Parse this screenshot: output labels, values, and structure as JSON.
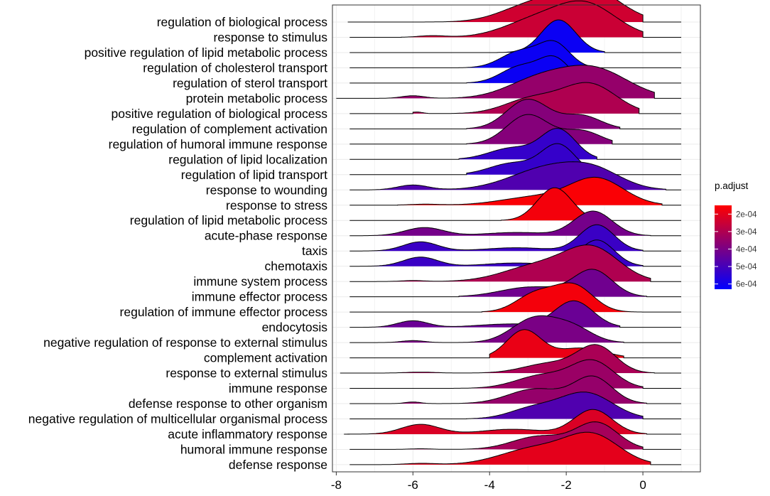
{
  "chart_data": {
    "type": "ridgeline",
    "title": "",
    "xlabel": "",
    "ylabel": "",
    "xlim": [
      -8.1,
      1.5
    ],
    "x_ticks": [
      -8,
      -6,
      -4,
      -2,
      0
    ],
    "x_tick_labels": [
      "-8",
      "-6",
      "-4",
      "-2",
      "0"
    ],
    "grid": true,
    "legend": {
      "title": "p.adjust",
      "position": "right",
      "ticks": [
        0.0002,
        0.0003,
        0.0004,
        0.0005,
        0.0006
      ],
      "tick_labels": [
        "2e-04",
        "3e-04",
        "4e-04",
        "5e-04",
        "6e-04"
      ],
      "range": [
        0.00015,
        0.00063
      ],
      "low_color": "#ff0000",
      "high_color": "#0000ff"
    },
    "colors": {
      "low_p": "#ff0000",
      "high_p": "#0000ff",
      "outline": "#000000",
      "grid": "#ebebeb"
    },
    "series": [
      {
        "name": "regulation of biological process",
        "p_adjust": 0.00024,
        "range": [
          -7.7,
          0.0
        ],
        "peaks": [
          [
            -1.4,
            0.8,
            1.0
          ],
          [
            -2.9,
            0.8,
            0.5
          ]
        ]
      },
      {
        "name": "response to stimulus",
        "p_adjust": 0.00025,
        "range": [
          -6.3,
          0.0
        ],
        "peaks": [
          [
            -1.5,
            0.8,
            1.0
          ],
          [
            -2.9,
            0.8,
            0.45
          ],
          [
            -5.5,
            0.35,
            0.05
          ]
        ]
      },
      {
        "name": "positive regulation of lipid metabolic process",
        "p_adjust": 0.00061,
        "range": [
          -3.8,
          -1.0
        ],
        "peaks": [
          [
            -2.2,
            0.45,
            1.0
          ]
        ]
      },
      {
        "name": "regulation of cholesterol transport",
        "p_adjust": 0.00061,
        "range": [
          -4.8,
          -1.4
        ],
        "peaks": [
          [
            -2.3,
            0.4,
            0.72
          ],
          [
            -3.2,
            0.5,
            0.5
          ]
        ]
      },
      {
        "name": "regulation of sterol transport",
        "p_adjust": 0.00061,
        "range": [
          -4.6,
          -1.4
        ],
        "peaks": [
          [
            -2.3,
            0.4,
            0.72
          ],
          [
            -3.2,
            0.5,
            0.5
          ]
        ]
      },
      {
        "name": "protein metabolic process",
        "p_adjust": 0.00035,
        "range": [
          -8.0,
          0.3
        ],
        "peaks": [
          [
            -1.3,
            0.9,
            0.9
          ],
          [
            -2.8,
            0.8,
            0.5
          ],
          [
            -6.0,
            0.3,
            0.08
          ]
        ]
      },
      {
        "name": "positive regulation of biological process",
        "p_adjust": 0.0003,
        "range": [
          -6.0,
          -0.1
        ],
        "peaks": [
          [
            -1.4,
            0.7,
            0.9
          ],
          [
            -2.9,
            0.7,
            0.45
          ],
          [
            -5.9,
            0.15,
            0.05
          ]
        ]
      },
      {
        "name": "regulation of complement activation",
        "p_adjust": 0.00038,
        "range": [
          -4.6,
          -0.6
        ],
        "peaks": [
          [
            -3.0,
            0.55,
            0.9
          ],
          [
            -1.6,
            0.5,
            0.4
          ]
        ]
      },
      {
        "name": "regulation of humoral immune response",
        "p_adjust": 0.00038,
        "range": [
          -4.6,
          -0.8
        ],
        "peaks": [
          [
            -3.0,
            0.55,
            0.9
          ],
          [
            -1.6,
            0.5,
            0.4
          ]
        ]
      },
      {
        "name": "regulation of lipid localization",
        "p_adjust": 0.00053,
        "range": [
          -4.8,
          -1.2
        ],
        "peaks": [
          [
            -2.2,
            0.45,
            0.9
          ],
          [
            -3.4,
            0.6,
            0.35
          ]
        ]
      },
      {
        "name": "regulation of lipid transport",
        "p_adjust": 0.00053,
        "range": [
          -4.6,
          -1.3
        ],
        "peaks": [
          [
            -2.2,
            0.45,
            0.9
          ],
          [
            -3.4,
            0.6,
            0.35
          ]
        ]
      },
      {
        "name": "response to wounding",
        "p_adjust": 0.00048,
        "range": [
          -7.6,
          0.6
        ],
        "peaks": [
          [
            -2.4,
            1.0,
            0.7
          ],
          [
            -1.2,
            0.7,
            0.4
          ],
          [
            -6.0,
            0.4,
            0.15
          ]
        ]
      },
      {
        "name": "response to stress",
        "p_adjust": 0.00016,
        "range": [
          -6.4,
          0.5
        ],
        "peaks": [
          [
            -1.2,
            0.7,
            0.8
          ],
          [
            -2.8,
            0.9,
            0.25
          ],
          [
            -5.7,
            0.4,
            0.03
          ]
        ]
      },
      {
        "name": "regulation of lipid metabolic process",
        "p_adjust": 0.00017,
        "range": [
          -3.7,
          -0.9
        ],
        "peaks": [
          [
            -2.3,
            0.45,
            1.0
          ]
        ]
      },
      {
        "name": "acute-phase response",
        "p_adjust": 0.00041,
        "range": [
          -7.6,
          0.2
        ],
        "peaks": [
          [
            -1.3,
            0.5,
            0.75
          ],
          [
            -5.7,
            0.5,
            0.25
          ],
          [
            -3.3,
            0.8,
            0.1
          ]
        ]
      },
      {
        "name": "taxis",
        "p_adjust": 0.00052,
        "range": [
          -7.5,
          0.0
        ],
        "peaks": [
          [
            -1.2,
            0.45,
            0.8
          ],
          [
            -5.8,
            0.45,
            0.28
          ],
          [
            -3.3,
            0.8,
            0.1
          ]
        ]
      },
      {
        "name": "chemotaxis",
        "p_adjust": 0.00052,
        "range": [
          -7.5,
          0.0
        ],
        "peaks": [
          [
            -1.2,
            0.45,
            0.8
          ],
          [
            -5.8,
            0.45,
            0.28
          ],
          [
            -3.3,
            0.8,
            0.1
          ]
        ]
      },
      {
        "name": "immune system process",
        "p_adjust": 0.0003,
        "range": [
          -7.6,
          0.2
        ],
        "peaks": [
          [
            -1.3,
            0.7,
            0.95
          ],
          [
            -2.7,
            0.9,
            0.5
          ],
          [
            -6.0,
            0.3,
            0.03
          ]
        ]
      },
      {
        "name": "immune effector process",
        "p_adjust": 0.00042,
        "range": [
          -4.8,
          0.1
        ],
        "peaks": [
          [
            -1.3,
            0.5,
            0.8
          ],
          [
            -2.9,
            0.8,
            0.3
          ]
        ]
      },
      {
        "name": "regulation of immune effector process",
        "p_adjust": 0.00017,
        "range": [
          -4.2,
          0.0
        ],
        "peaks": [
          [
            -1.8,
            0.5,
            0.8
          ],
          [
            -2.8,
            0.5,
            0.55
          ]
        ]
      },
      {
        "name": "endocytosis",
        "p_adjust": 0.00043,
        "range": [
          -7.5,
          -0.6
        ],
        "peaks": [
          [
            -1.8,
            0.5,
            0.8
          ],
          [
            -6.0,
            0.4,
            0.2
          ],
          [
            -3.5,
            0.8,
            0.1
          ]
        ]
      },
      {
        "name": "negative regulation of response to external stimulus",
        "p_adjust": 0.0004,
        "range": [
          -7.3,
          -0.5
        ],
        "peaks": [
          [
            -2.8,
            0.6,
            0.75
          ],
          [
            -1.8,
            0.5,
            0.4
          ],
          [
            -6.0,
            0.3,
            0.06
          ]
        ]
      },
      {
        "name": "complement activation",
        "p_adjust": 0.00019,
        "range": [
          -4.0,
          -0.5
        ],
        "peaks": [
          [
            -3.1,
            0.45,
            0.85
          ],
          [
            -1.6,
            0.6,
            0.3
          ]
        ]
      },
      {
        "name": "response to external stimulus",
        "p_adjust": 0.00031,
        "range": [
          -7.9,
          0.3
        ],
        "peaks": [
          [
            -1.2,
            0.5,
            0.8
          ],
          [
            -2.4,
            0.7,
            0.3
          ],
          [
            -5.8,
            0.4,
            0.03
          ]
        ]
      },
      {
        "name": "immune response",
        "p_adjust": 0.00034,
        "range": [
          -6.6,
          0.0
        ],
        "peaks": [
          [
            -1.3,
            0.55,
            0.8
          ],
          [
            -2.6,
            0.7,
            0.4
          ]
        ]
      },
      {
        "name": "defense response to other organism",
        "p_adjust": 0.00035,
        "range": [
          -6.6,
          0.1
        ],
        "peaks": [
          [
            -1.3,
            0.5,
            0.8
          ],
          [
            -2.8,
            0.7,
            0.45
          ],
          [
            -6.0,
            0.2,
            0.05
          ]
        ]
      },
      {
        "name": "negative regulation of multicellular organismal process",
        "p_adjust": 0.00048,
        "range": [
          -4.6,
          0.0
        ],
        "peaks": [
          [
            -1.5,
            0.7,
            0.8
          ],
          [
            -2.9,
            0.6,
            0.3
          ]
        ]
      },
      {
        "name": "acute inflammatory response",
        "p_adjust": 0.00022,
        "range": [
          -7.8,
          0.1
        ],
        "peaks": [
          [
            -1.3,
            0.5,
            0.75
          ],
          [
            -5.8,
            0.5,
            0.3
          ],
          [
            -3.4,
            0.8,
            0.15
          ]
        ]
      },
      {
        "name": "humoral immune response",
        "p_adjust": 0.00032,
        "range": [
          -6.7,
          0.0
        ],
        "peaks": [
          [
            -1.2,
            0.55,
            0.8
          ],
          [
            -2.7,
            0.7,
            0.4
          ],
          [
            -5.8,
            0.3,
            0.02
          ]
        ]
      },
      {
        "name": "defense response",
        "p_adjust": 0.0002,
        "range": [
          -7.2,
          0.2
        ],
        "peaks": [
          [
            -1.3,
            0.7,
            0.85
          ],
          [
            -2.8,
            0.9,
            0.5
          ],
          [
            -5.8,
            0.4,
            0.04
          ]
        ]
      }
    ]
  }
}
